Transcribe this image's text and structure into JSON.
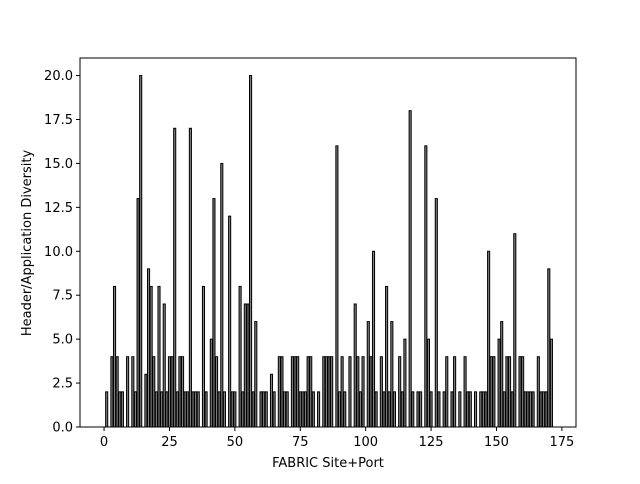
{
  "chart_data": {
    "type": "bar",
    "xlabel": "FABRIC Site+Port",
    "ylabel": "Header/Application Diversity",
    "x": [
      1,
      3,
      4,
      5,
      6,
      7,
      9,
      11,
      12,
      13,
      14,
      16,
      17,
      18,
      19,
      20,
      21,
      22,
      23,
      24,
      25,
      26,
      27,
      28,
      29,
      30,
      31,
      32,
      33,
      34,
      35,
      36,
      38,
      39,
      41,
      42,
      43,
      44,
      45,
      46,
      48,
      49,
      50,
      52,
      53,
      54,
      55,
      56,
      57,
      58,
      60,
      61,
      62,
      64,
      65,
      67,
      68,
      69,
      70,
      72,
      73,
      74,
      75,
      76,
      77,
      78,
      79,
      80,
      82,
      84,
      85,
      86,
      87,
      89,
      90,
      91,
      92,
      94,
      96,
      97,
      98,
      99,
      101,
      102,
      103,
      104,
      106,
      107,
      108,
      109,
      110,
      111,
      113,
      114,
      115,
      117,
      118,
      120,
      121,
      123,
      124,
      125,
      127,
      128,
      130,
      131,
      133,
      134,
      136,
      138,
      139,
      140,
      142,
      144,
      145,
      146,
      147,
      148,
      149,
      151,
      152,
      153,
      154,
      155,
      156,
      157,
      159,
      160,
      161,
      162,
      163,
      164,
      166,
      167,
      168,
      169,
      170,
      171
    ],
    "values": [
      2,
      4,
      8,
      4,
      2,
      2,
      4,
      4,
      2,
      13,
      20,
      3,
      9,
      8,
      4,
      2,
      8,
      2,
      7,
      2,
      4,
      4,
      17,
      2,
      4,
      4,
      2,
      2,
      17,
      2,
      2,
      2,
      8,
      2,
      5,
      13,
      4,
      2,
      15,
      2,
      12,
      2,
      2,
      8,
      2,
      7,
      7,
      20,
      2,
      6,
      2,
      2,
      2,
      3,
      2,
      4,
      4,
      2,
      2,
      4,
      4,
      4,
      2,
      2,
      2,
      4,
      4,
      2,
      2,
      4,
      4,
      4,
      4,
      16,
      2,
      4,
      2,
      4,
      7,
      4,
      2,
      4,
      6,
      4,
      10,
      2,
      4,
      2,
      8,
      2,
      6,
      2,
      4,
      2,
      5,
      18,
      2,
      2,
      2,
      16,
      5,
      2,
      13,
      2,
      2,
      4,
      2,
      4,
      2,
      4,
      2,
      2,
      2,
      2,
      2,
      2,
      10,
      4,
      4,
      5,
      6,
      2,
      4,
      4,
      2,
      11,
      4,
      4,
      2,
      2,
      2,
      2,
      4,
      2,
      2,
      2,
      9,
      5
    ],
    "color": "#808080",
    "edgecolor": "#000000",
    "xlim": [
      -9.2,
      180.4
    ],
    "ylim": [
      0,
      21
    ],
    "xticks": [
      0,
      25,
      50,
      75,
      100,
      125,
      150,
      175
    ],
    "yticks": [
      {
        "value": 0,
        "label": "0.0"
      },
      {
        "value": 2.5,
        "label": "2.5"
      },
      {
        "value": 5,
        "label": "5.0"
      },
      {
        "value": 7.5,
        "label": "7.5"
      },
      {
        "value": 10,
        "label": "10.0"
      },
      {
        "value": 12.5,
        "label": "12.5"
      },
      {
        "value": 15,
        "label": "15.0"
      },
      {
        "value": 17.5,
        "label": "17.5"
      },
      {
        "value": 20,
        "label": "20.0"
      }
    ]
  }
}
